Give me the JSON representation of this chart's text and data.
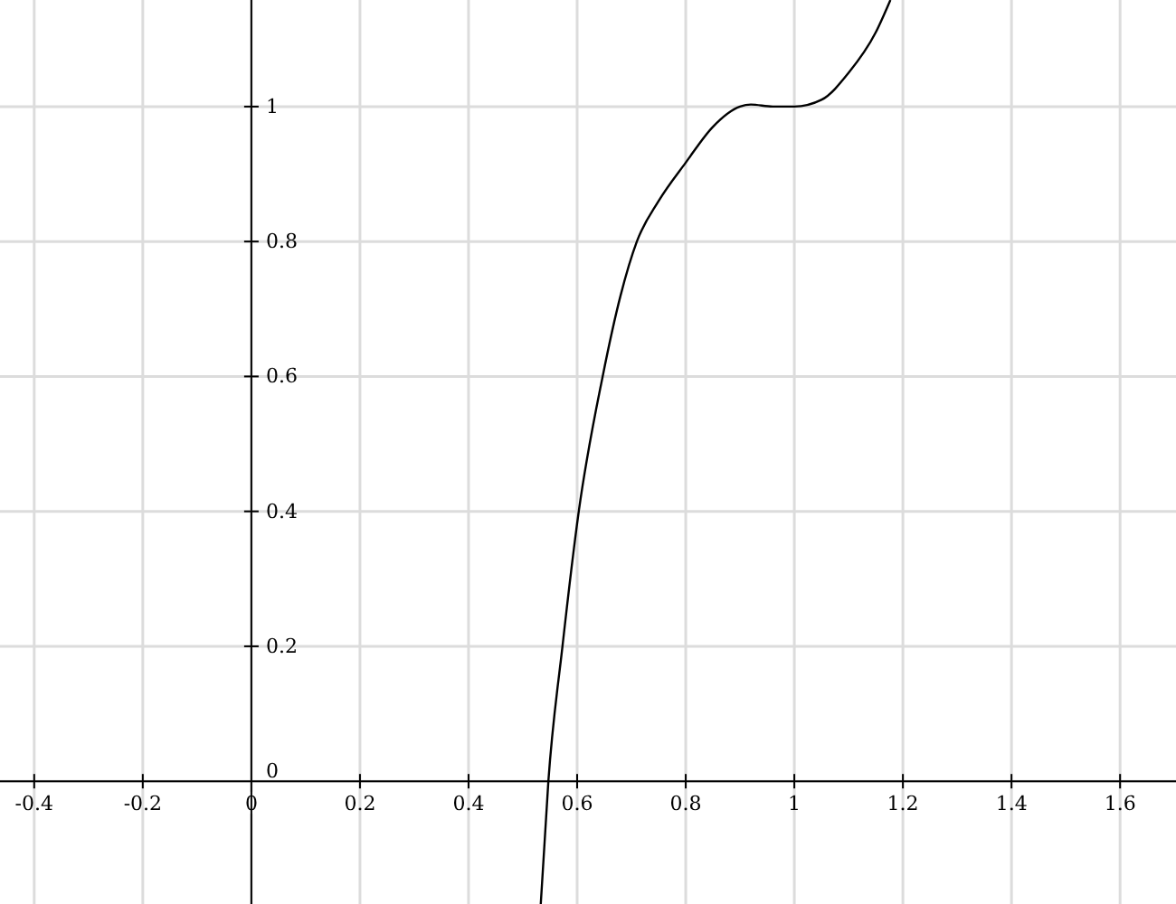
{
  "chart_data": {
    "type": "line",
    "x": [
      0.533,
      0.547,
      0.573,
      0.603,
      0.647,
      0.68,
      0.71,
      0.75,
      0.8,
      0.85,
      0.9,
      0.92,
      0.96,
      1.0,
      1.05,
      1.1,
      1.15,
      1.177
    ],
    "series": [
      {
        "color": "#000000",
        "values": [
          -0.182,
          0,
          0.2,
          0.4,
          0.6,
          0.72,
          0.8,
          0.86,
          0.917,
          0.97,
          1.0,
          1.003,
          1.0,
          1.0,
          1.01,
          1.05,
          1.11,
          1.158
        ]
      }
    ],
    "xlim": [
      -0.463,
      1.703
    ],
    "ylim": [
      -0.182,
      1.158
    ],
    "xticks": [
      -0.4,
      -0.2,
      0,
      0.2,
      0.4,
      0.6,
      0.8,
      1,
      1.2,
      1.4,
      1.6
    ],
    "yticks": [
      0,
      0.2,
      0.4,
      0.6,
      0.8,
      1
    ],
    "grid": true,
    "marker": "none",
    "line_style": "solid"
  }
}
